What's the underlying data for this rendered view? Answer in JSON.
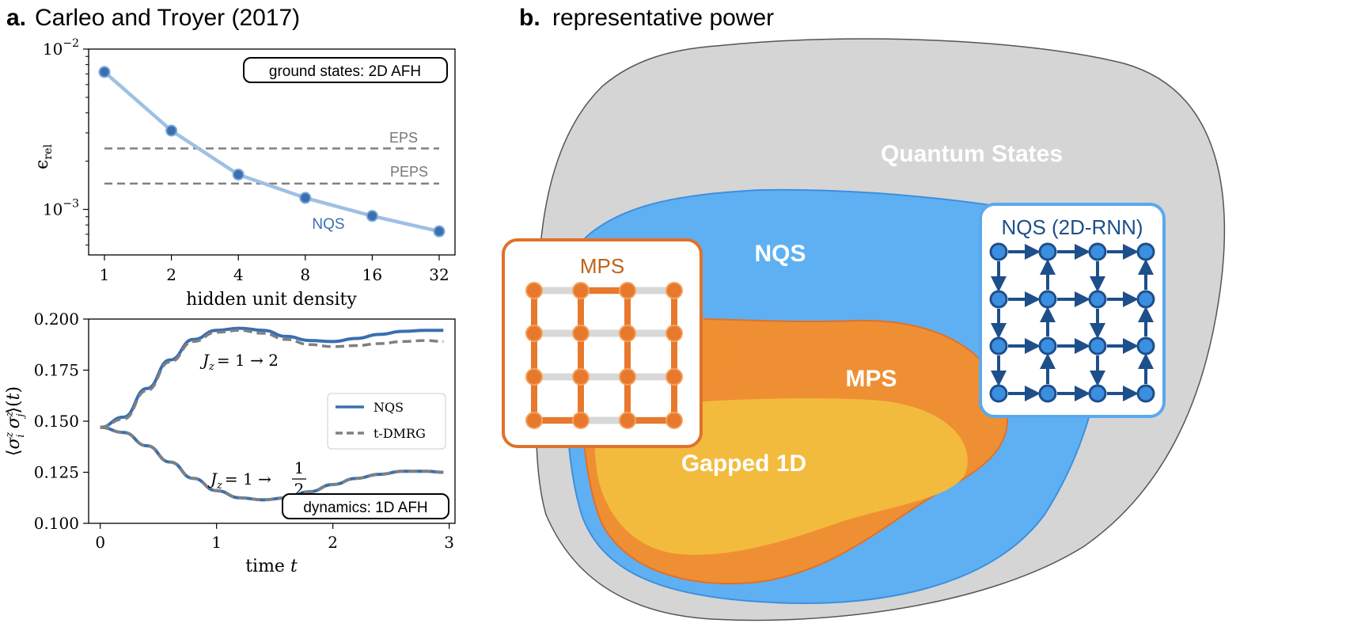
{
  "panel_a": {
    "letter": "a.",
    "title": "Carleo and Troyer (2017)"
  },
  "panel_b": {
    "letter": "b.",
    "title": "representative power",
    "regions": {
      "quantum_states": "Quantum States",
      "nqs": "NQS",
      "mps": "MPS",
      "gapped": "Gapped 1D"
    },
    "inset_mps_title": "MPS",
    "inset_nqs_title": "NQS (2D-RNN)",
    "colors": {
      "quantum_states": "#d5d5d5",
      "nqs": "#5fb0f2",
      "mps": "#ef8f33",
      "gapped": "#f3bb3e"
    }
  },
  "chart_data": [
    {
      "type": "line",
      "x_scale": "log2",
      "y_scale": "log",
      "x": [
        1,
        2,
        4,
        8,
        16,
        32
      ],
      "x_tick_labels": [
        "1",
        "2",
        "4",
        "8",
        "16",
        "32"
      ],
      "y_tick_labels": [
        "10^{-2}",
        "10^{-3}"
      ],
      "xlabel": "hidden unit density",
      "ylabel": "ε_rel",
      "ylim": [
        0.00052,
        0.01
      ],
      "series": [
        {
          "name": "NQS",
          "values": [
            0.0072,
            0.0031,
            0.00165,
            0.00118,
            0.00091,
            0.00073
          ],
          "color": "#3a6fb0"
        }
      ],
      "reference_lines": [
        {
          "name": "EPS",
          "value": 0.0024,
          "color": "#808080"
        },
        {
          "name": "PEPS",
          "value": 0.00145,
          "color": "#808080"
        }
      ],
      "box_label": "ground states: 2D AFH",
      "grid": false
    },
    {
      "type": "line",
      "x_tick_labels": [
        "0",
        "1",
        "2",
        "3"
      ],
      "y_tick_labels": [
        "0.100",
        "0.125",
        "0.150",
        "0.175",
        "0.200"
      ],
      "xlabel": "time t",
      "ylabel": "⟨σ_i^z σ_j^z⟩(t)",
      "xlim": [
        -0.1,
        3.05
      ],
      "ylim": [
        0.1,
        0.2
      ],
      "x": [
        0,
        0.2,
        0.4,
        0.6,
        0.8,
        1.0,
        1.2,
        1.4,
        1.6,
        1.8,
        2.0,
        2.2,
        2.4,
        2.6,
        2.8,
        2.95
      ],
      "series": [
        {
          "name": "NQS",
          "group": "J_z = 1 → 2",
          "color": "#3a6fb0",
          "values": [
            0.147,
            0.152,
            0.166,
            0.18,
            0.19,
            0.1945,
            0.1955,
            0.1945,
            0.1915,
            0.1895,
            0.189,
            0.1905,
            0.1925,
            0.194,
            0.1945,
            0.1945
          ]
        },
        {
          "name": "t-DMRG",
          "group": "J_z = 1 → 2",
          "color": "#808080",
          "values": [
            0.147,
            0.151,
            0.165,
            0.179,
            0.189,
            0.1935,
            0.1945,
            0.193,
            0.19,
            0.1875,
            0.1865,
            0.187,
            0.188,
            0.189,
            0.1895,
            0.189
          ]
        },
        {
          "name": "NQS",
          "group": "J_z = 1 → 1/2",
          "color": "#3a6fb0",
          "values": [
            0.147,
            0.1445,
            0.138,
            0.13,
            0.122,
            0.116,
            0.1125,
            0.1115,
            0.1125,
            0.1155,
            0.119,
            0.122,
            0.124,
            0.1255,
            0.1255,
            0.125
          ]
        },
        {
          "name": "t-DMRG",
          "group": "J_z = 1 → 1/2",
          "color": "#808080",
          "values": [
            0.147,
            0.1445,
            0.138,
            0.13,
            0.122,
            0.116,
            0.1125,
            0.1115,
            0.1125,
            0.1155,
            0.119,
            0.122,
            0.124,
            0.1255,
            0.1255,
            0.125
          ]
        }
      ],
      "legend": {
        "placement": "right",
        "entries": [
          "NQS",
          "t-DMRG"
        ]
      },
      "annotations": {
        "upper": {
          "lhs": "J",
          "sub": "z",
          "rhs": "= 1 → 2"
        },
        "lower": {
          "lhs": "J",
          "sub": "z",
          "rhs": "= 1 →",
          "frac_num": "1",
          "frac_den": "2"
        }
      },
      "box_label": "dynamics: 1D AFH",
      "grid": false
    }
  ]
}
